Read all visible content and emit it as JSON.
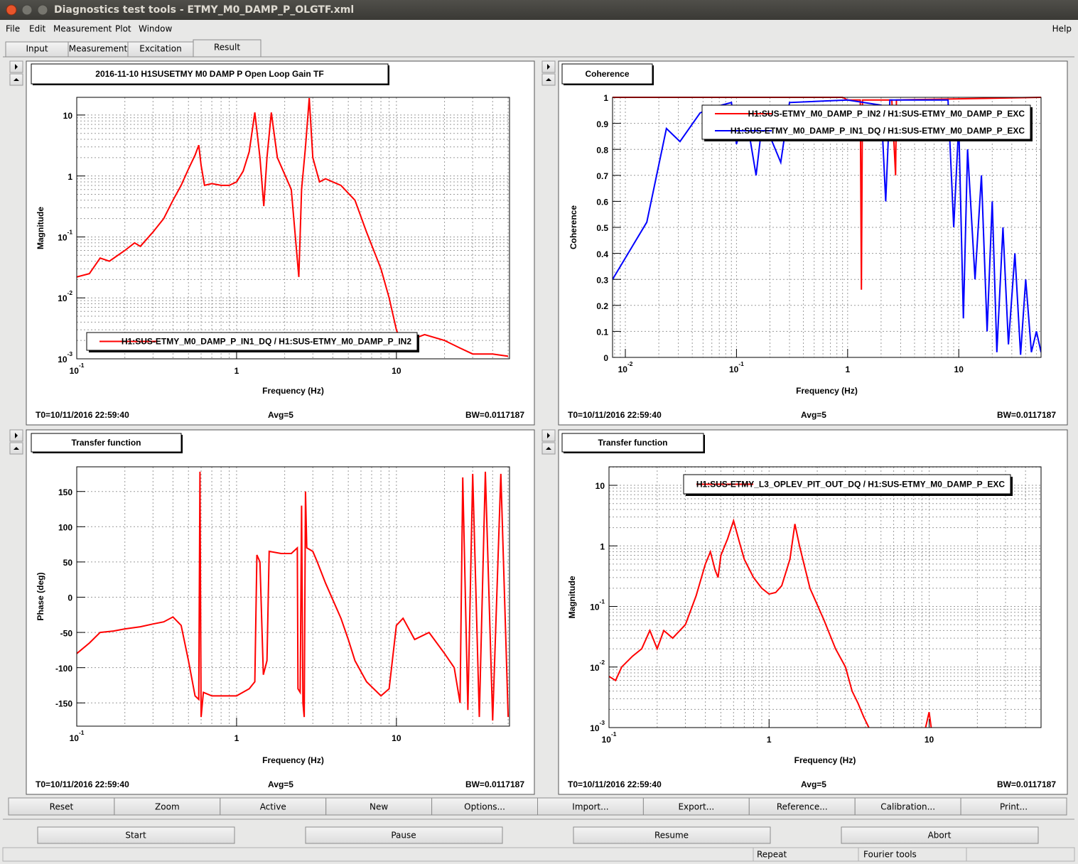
{
  "window": {
    "title": "Diagnostics test tools - ETMY_M0_DAMP_P_OLGTF.xml"
  },
  "menu": {
    "items": [
      "File",
      "Edit",
      "Measurement",
      "Plot",
      "Window"
    ],
    "help": "Help"
  },
  "tabs": {
    "items": [
      "Input",
      "Measurement",
      "Excitation",
      "Result"
    ],
    "selected": 3
  },
  "chart_data": [
    {
      "type": "line",
      "title": "2016-11-10 H1SUSETMY M0 DAMP P Open Loop Gain TF",
      "x_label": "Frequency (Hz)",
      "y_label": "Magnitude",
      "xscale": "log",
      "yscale": "log",
      "xlim": [
        0.1,
        51
      ],
      "ylim": [
        0.001,
        19.5
      ],
      "xticks": [
        {
          "value": 0.1,
          "label": "10^-1"
        },
        1,
        10
      ],
      "yticks": [
        {
          "value": 0.001,
          "label": "10^-3"
        },
        {
          "value": 0.01,
          "label": "10^-2"
        },
        {
          "value": 0.1,
          "label": "10^-1"
        },
        1,
        10
      ],
      "grid": true,
      "legend": "lower right",
      "series": [
        {
          "name": "H1:SUS-ETMY_M0_DAMP_P_IN1_DQ / H1:SUS-ETMY_M0_DAMP_P_IN2",
          "color": "#ff0000",
          "x": [
            0.1,
            0.12,
            0.14,
            0.16,
            0.2,
            0.23,
            0.25,
            0.3,
            0.35,
            0.4,
            0.45,
            0.5,
            0.55,
            0.58,
            0.6,
            0.63,
            0.7,
            0.8,
            0.9,
            1.0,
            1.1,
            1.2,
            1.3,
            1.4,
            1.48,
            1.55,
            1.65,
            1.8,
            2.2,
            2.45,
            2.55,
            2.7,
            2.85,
            3.0,
            3.3,
            3.6,
            4.5,
            5.5,
            6.5,
            8,
            9,
            10,
            11,
            12,
            15,
            20,
            25,
            30,
            40,
            50
          ],
          "values": [
            0.022,
            0.025,
            0.045,
            0.04,
            0.06,
            0.08,
            0.07,
            0.12,
            0.2,
            0.4,
            0.7,
            1.3,
            2.2,
            3.2,
            1.5,
            0.7,
            0.75,
            0.7,
            0.7,
            0.8,
            1.2,
            2.5,
            11,
            2,
            0.32,
            2,
            11,
            2,
            0.6,
            0.022,
            0.6,
            3,
            19,
            2,
            0.8,
            0.9,
            0.7,
            0.4,
            0.12,
            0.03,
            0.01,
            0.003,
            0.0015,
            0.002,
            0.0025,
            0.002,
            0.0015,
            0.0012,
            0.0012,
            0.0011
          ]
        }
      ],
      "footer": [
        "T0=10/11/2016 22:59:40",
        "Avg=5",
        "BW=0.0117187"
      ]
    },
    {
      "type": "line",
      "title": "Coherence",
      "x_label": "Frequency (Hz)",
      "y_label": "Coherence",
      "xscale": "log",
      "yscale": "linear",
      "xlim": [
        0.00767,
        55
      ],
      "ylim": [
        0,
        1
      ],
      "xticks": [
        {
          "value": 0.01,
          "label": "10^-2"
        },
        {
          "value": 0.1,
          "label": "10^-1"
        },
        1,
        10
      ],
      "yticks": [
        0,
        0.1,
        0.2,
        0.3,
        0.4,
        0.5,
        0.6,
        0.7,
        0.8,
        0.9,
        1
      ],
      "grid": true,
      "legend": "upper right",
      "series": [
        {
          "name": "H1:SUS-ETMY_M0_DAMP_P_IN2 / H1:SUS-ETMY_M0_DAMP_P_EXC",
          "color": "#ff0000",
          "x": [
            0.00767,
            0.5,
            0.9,
            1.0,
            1.3,
            1.33,
            1.36,
            2.5,
            2.7,
            2.75,
            55
          ],
          "values": [
            1,
            1,
            1,
            0.99,
            0.99,
            0.26,
            0.99,
            0.99,
            0.7,
            0.99,
            1
          ]
        },
        {
          "name": "H1:SUS-ETMY_M0_DAMP_P_IN1_DQ / H1:SUS-ETMY_M0_DAMP_P_EXC",
          "color": "#0000ff",
          "x": [
            0.00767,
            0.0156,
            0.0234,
            0.031,
            0.047,
            0.06,
            0.09,
            0.1,
            0.12,
            0.15,
            0.17,
            0.2,
            0.25,
            0.3,
            1,
            2.0,
            2.2,
            2.4,
            8,
            9,
            10,
            11,
            12,
            14,
            16,
            18,
            20,
            22,
            25,
            28,
            32,
            36,
            40,
            45,
            50,
            55
          ],
          "values": [
            0.3,
            0.52,
            0.88,
            0.83,
            0.94,
            0.96,
            0.98,
            0.82,
            0.95,
            0.7,
            0.9,
            0.85,
            0.75,
            0.98,
            0.99,
            0.97,
            0.6,
            0.99,
            0.99,
            0.5,
            0.9,
            0.15,
            0.8,
            0.3,
            0.7,
            0.1,
            0.6,
            0.02,
            0.5,
            0.05,
            0.4,
            0.01,
            0.3,
            0.02,
            0.1,
            0.02
          ]
        }
      ],
      "footer": [
        "T0=10/11/2016 22:59:40",
        "Avg=5",
        "BW=0.0117187"
      ]
    },
    {
      "type": "line",
      "title": "Transfer function",
      "x_label": "Frequency (Hz)",
      "y_label": "Phase (deg)",
      "xscale": "log",
      "yscale": "linear",
      "xlim": [
        0.1,
        51
      ],
      "ylim": [
        -183,
        185
      ],
      "xticks": [
        {
          "value": 0.1,
          "label": "10^-1"
        },
        1,
        10
      ],
      "yticks": [
        -150,
        -100,
        -50,
        0,
        50,
        100,
        150
      ],
      "grid": true,
      "series": [
        {
          "color": "#ff0000",
          "x": [
            0.1,
            0.12,
            0.14,
            0.17,
            0.2,
            0.25,
            0.3,
            0.35,
            0.4,
            0.45,
            0.5,
            0.55,
            0.58,
            0.59,
            0.6,
            0.62,
            0.7,
            0.8,
            1.0,
            1.2,
            1.3,
            1.34,
            1.4,
            1.47,
            1.55,
            1.6,
            1.9,
            2.2,
            2.4,
            2.42,
            2.5,
            2.55,
            2.6,
            2.65,
            2.7,
            2.75,
            3.0,
            3.2,
            3.6,
            4.5,
            5,
            5.5,
            6.5,
            8,
            9,
            10,
            11,
            13,
            16,
            20,
            23,
            25,
            26,
            28,
            30,
            33,
            36,
            40,
            45,
            50
          ],
          "values": [
            -80,
            -65,
            -50,
            -48,
            -45,
            -42,
            -38,
            -35,
            -28,
            -40,
            -90,
            -140,
            -145,
            178,
            -170,
            -135,
            -140,
            -140,
            -140,
            -130,
            -120,
            60,
            50,
            -110,
            -90,
            65,
            62,
            62,
            70,
            -130,
            -135,
            130,
            -150,
            -170,
            150,
            70,
            65,
            50,
            20,
            -30,
            -60,
            -90,
            -120,
            -140,
            -130,
            -40,
            -30,
            -60,
            -50,
            -80,
            -100,
            -150,
            170,
            -160,
            175,
            -170,
            178,
            -175,
            175,
            -170
          ]
        }
      ],
      "footer": [
        "T0=10/11/2016 22:59:40",
        "Avg=5",
        "BW=0.0117187"
      ]
    },
    {
      "type": "line",
      "title": "Transfer function",
      "x_label": "Frequency (Hz)",
      "y_label": "Magnitude",
      "xscale": "log",
      "yscale": "log",
      "xlim": [
        0.1,
        50
      ],
      "ylim": [
        0.001,
        20.2
      ],
      "xticks": [
        {
          "value": 0.1,
          "label": "10^-1"
        },
        1,
        10
      ],
      "yticks": [
        {
          "value": 0.001,
          "label": "10^-3"
        },
        {
          "value": 0.01,
          "label": "10^-2"
        },
        {
          "value": 0.1,
          "label": "10^-1"
        },
        1,
        10
      ],
      "grid": true,
      "legend": "upper right",
      "series": [
        {
          "name": "H1:SUS-ETMY_L3_OPLEV_PIT_OUT_DQ / H1:SUS-ETMY_M0_DAMP_P_EXC",
          "color": "#ff0000",
          "x": [
            0.1,
            0.11,
            0.12,
            0.14,
            0.16,
            0.18,
            0.2,
            0.22,
            0.25,
            0.3,
            0.35,
            0.4,
            0.43,
            0.46,
            0.48,
            0.5,
            0.55,
            0.6,
            0.65,
            0.7,
            0.8,
            0.9,
            1.0,
            1.1,
            1.2,
            1.35,
            1.45,
            1.55,
            1.8,
            2.2,
            2.6,
            3.0,
            3.3,
            3.6,
            3.9,
            4.2,
            6,
            9.5,
            10,
            10.3
          ],
          "values": [
            0.007,
            0.006,
            0.01,
            0.015,
            0.02,
            0.04,
            0.02,
            0.04,
            0.03,
            0.05,
            0.15,
            0.5,
            0.8,
            0.4,
            0.3,
            0.7,
            1.3,
            2.6,
            1.2,
            0.6,
            0.3,
            0.2,
            0.16,
            0.17,
            0.22,
            0.6,
            2.3,
            1,
            0.2,
            0.06,
            0.02,
            0.01,
            0.004,
            0.0025,
            0.0015,
            0.001,
            null,
            0.001,
            0.0018,
            0.001
          ]
        }
      ],
      "footer": [
        "T0=10/11/2016 22:59:40",
        "Avg=5",
        "BW=0.0117187"
      ]
    }
  ],
  "buttons": [
    "Reset",
    "Zoom",
    "Active",
    "New",
    "Options...",
    "Import...",
    "Export...",
    "Reference...",
    "Calibration...",
    "Print..."
  ],
  "controls": [
    "Start",
    "Pause",
    "Resume",
    "Abort"
  ],
  "status": [
    "Repeat",
    "Fourier tools"
  ]
}
